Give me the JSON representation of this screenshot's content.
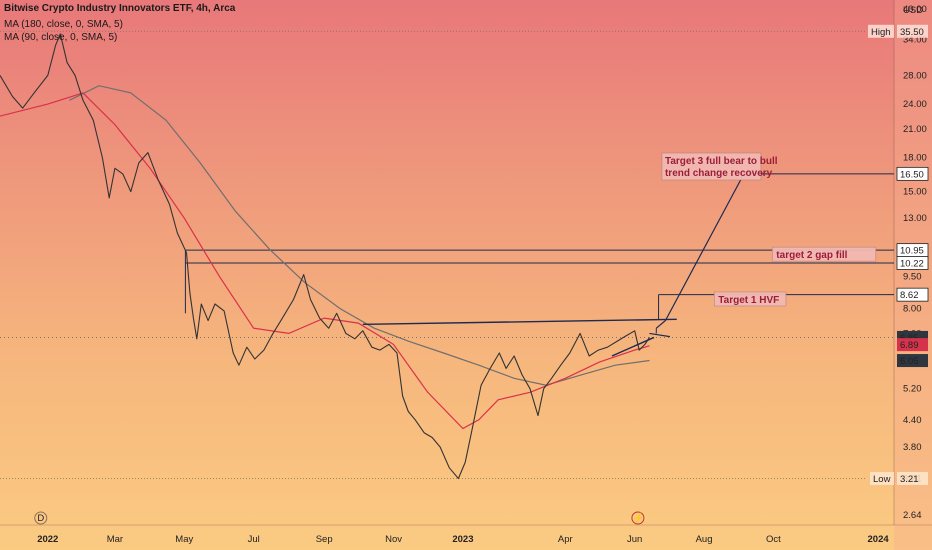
{
  "header": {
    "title": "Bitwise Crypto Industry Innovators ETF, 4h, Arca",
    "ma1": "MA (180, close, 0, SMA, 5)",
    "ma2": "MA (90, close, 0, SMA, 5)"
  },
  "colors": {
    "price": "#333333",
    "ma_red": "#d9314a",
    "ma_gray": "#6f6f6f",
    "level_line": "#1e2a50",
    "box_fill": "#f2b9b2",
    "label_red": "#d6334b",
    "label_gray": "#2f3640"
  },
  "chart_data": {
    "type": "line",
    "currency_label": "USD",
    "y_scale": "log",
    "ylim": [
      2.5,
      42
    ],
    "x_range": [
      "2021-11-20",
      "2024-01-15"
    ],
    "x_ticks": [
      {
        "date": "2022-01-01",
        "label": "2022",
        "bold": true
      },
      {
        "date": "2022-03-01",
        "label": "Mar",
        "bold": false
      },
      {
        "date": "2022-05-01",
        "label": "May",
        "bold": false
      },
      {
        "date": "2022-07-01",
        "label": "Jul",
        "bold": false
      },
      {
        "date": "2022-09-01",
        "label": "Sep",
        "bold": false
      },
      {
        "date": "2022-11-01",
        "label": "Nov",
        "bold": false
      },
      {
        "date": "2023-01-01",
        "label": "2023",
        "bold": true
      },
      {
        "date": "2023-04-01",
        "label": "Apr",
        "bold": false
      },
      {
        "date": "2023-06-01",
        "label": "Jun",
        "bold": false
      },
      {
        "date": "2023-08-01",
        "label": "Aug",
        "bold": false
      },
      {
        "date": "2023-10-01",
        "label": "Oct",
        "bold": false
      },
      {
        "date": "2024-01-01",
        "label": "2024",
        "bold": true
      }
    ],
    "y_ticks": [
      "2.64",
      "3.21",
      "3.80",
      "4.40",
      "5.20",
      "6.05",
      "6.89",
      "7.00",
      "8.00",
      "9.50",
      "10.95",
      "13.00",
      "15.00",
      "16.50",
      "18.00",
      "21.00",
      "24.00",
      "28.00",
      "34.00",
      "40.00"
    ],
    "y_tick_values": [
      2.64,
      3.21,
      3.8,
      4.4,
      5.2,
      6.05,
      6.89,
      7.0,
      8.0,
      9.5,
      10.95,
      13.0,
      15.0,
      16.5,
      18.0,
      21.0,
      24.0,
      28.0,
      34.0,
      40.0
    ],
    "price_series": [
      [
        "2021-11-20",
        28
      ],
      [
        "2021-12-01",
        25
      ],
      [
        "2021-12-10",
        23.5
      ],
      [
        "2021-12-20",
        25.5
      ],
      [
        "2022-01-01",
        28
      ],
      [
        "2022-01-08",
        33
      ],
      [
        "2022-01-12",
        35
      ],
      [
        "2022-01-18",
        30
      ],
      [
        "2022-01-25",
        28
      ],
      [
        "2022-02-01",
        24.5
      ],
      [
        "2022-02-10",
        22
      ],
      [
        "2022-02-18",
        18
      ],
      [
        "2022-02-24",
        14.5
      ],
      [
        "2022-03-01",
        17
      ],
      [
        "2022-03-08",
        16.5
      ],
      [
        "2022-03-15",
        15
      ],
      [
        "2022-03-22",
        17.5
      ],
      [
        "2022-03-30",
        18.5
      ],
      [
        "2022-04-08",
        16
      ],
      [
        "2022-04-18",
        14
      ],
      [
        "2022-04-25",
        12
      ],
      [
        "2022-05-03",
        10.8
      ],
      [
        "2022-05-06",
        8.7
      ],
      [
        "2022-05-09",
        7.6
      ],
      [
        "2022-05-12",
        6.8
      ],
      [
        "2022-05-16",
        8.2
      ],
      [
        "2022-05-22",
        7.5
      ],
      [
        "2022-05-28",
        8.2
      ],
      [
        "2022-06-05",
        7.9
      ],
      [
        "2022-06-13",
        6.3
      ],
      [
        "2022-06-18",
        5.9
      ],
      [
        "2022-06-25",
        6.5
      ],
      [
        "2022-07-02",
        6.1
      ],
      [
        "2022-07-10",
        6.4
      ],
      [
        "2022-07-18",
        7.0
      ],
      [
        "2022-07-25",
        7.5
      ],
      [
        "2022-08-05",
        8.4
      ],
      [
        "2022-08-14",
        9.6
      ],
      [
        "2022-08-20",
        8.4
      ],
      [
        "2022-08-28",
        7.6
      ],
      [
        "2022-09-05",
        7.2
      ],
      [
        "2022-09-12",
        7.8
      ],
      [
        "2022-09-20",
        7.0
      ],
      [
        "2022-09-28",
        6.8
      ],
      [
        "2022-10-05",
        7.1
      ],
      [
        "2022-10-13",
        6.5
      ],
      [
        "2022-10-20",
        6.4
      ],
      [
        "2022-10-28",
        6.6
      ],
      [
        "2022-11-04",
        6.3
      ],
      [
        "2022-11-09",
        5.0
      ],
      [
        "2022-11-14",
        4.6
      ],
      [
        "2022-11-20",
        4.4
      ],
      [
        "2022-11-28",
        4.1
      ],
      [
        "2022-12-05",
        4.0
      ],
      [
        "2022-12-12",
        3.8
      ],
      [
        "2022-12-20",
        3.4
      ],
      [
        "2022-12-28",
        3.21
      ],
      [
        "2023-01-03",
        3.5
      ],
      [
        "2023-01-10",
        4.3
      ],
      [
        "2023-01-17",
        5.3
      ],
      [
        "2023-01-25",
        5.8
      ],
      [
        "2023-02-02",
        6.3
      ],
      [
        "2023-02-08",
        5.8
      ],
      [
        "2023-02-15",
        6.2
      ],
      [
        "2023-02-22",
        5.6
      ],
      [
        "2023-03-01",
        5.2
      ],
      [
        "2023-03-08",
        4.5
      ],
      [
        "2023-03-13",
        5.2
      ],
      [
        "2023-03-20",
        5.5
      ],
      [
        "2023-03-28",
        5.9
      ],
      [
        "2023-04-05",
        6.3
      ],
      [
        "2023-04-14",
        7.0
      ],
      [
        "2023-04-22",
        6.2
      ],
      [
        "2023-04-30",
        6.4
      ],
      [
        "2023-05-08",
        6.5
      ],
      [
        "2023-05-16",
        6.7
      ],
      [
        "2023-05-24",
        6.9
      ],
      [
        "2023-06-01",
        7.1
      ],
      [
        "2023-06-05",
        6.4
      ],
      [
        "2023-06-10",
        6.6
      ],
      [
        "2023-06-14",
        6.85
      ]
    ],
    "ma_red_series": [
      [
        "2021-11-20",
        22.5
      ],
      [
        "2022-01-01",
        24
      ],
      [
        "2022-02-01",
        25.5
      ],
      [
        "2022-03-01",
        21.5
      ],
      [
        "2022-04-01",
        17
      ],
      [
        "2022-05-01",
        13
      ],
      [
        "2022-06-01",
        9.5
      ],
      [
        "2022-07-01",
        7.2
      ],
      [
        "2022-08-01",
        7.0
      ],
      [
        "2022-09-01",
        7.6
      ],
      [
        "2022-10-01",
        7.4
      ],
      [
        "2022-11-01",
        6.6
      ],
      [
        "2022-12-01",
        5.1
      ],
      [
        "2023-01-01",
        4.2
      ],
      [
        "2023-01-15",
        4.4
      ],
      [
        "2023-02-01",
        4.9
      ],
      [
        "2023-03-01",
        5.1
      ],
      [
        "2023-04-01",
        5.5
      ],
      [
        "2023-05-01",
        6.0
      ],
      [
        "2023-06-01",
        6.4
      ],
      [
        "2023-06-14",
        6.55
      ]
    ],
    "ma_gray_series": [
      [
        "2022-01-20",
        24.5
      ],
      [
        "2022-02-15",
        26.5
      ],
      [
        "2022-03-15",
        25.5
      ],
      [
        "2022-04-15",
        22
      ],
      [
        "2022-05-15",
        17.5
      ],
      [
        "2022-06-15",
        13.5
      ],
      [
        "2022-07-15",
        11
      ],
      [
        "2022-08-15",
        9.2
      ],
      [
        "2022-09-15",
        8.0
      ],
      [
        "2022-10-15",
        7.2
      ],
      [
        "2022-11-15",
        6.7
      ],
      [
        "2022-12-15",
        6.3
      ],
      [
        "2023-01-15",
        5.9
      ],
      [
        "2023-02-15",
        5.5
      ],
      [
        "2023-03-15",
        5.3
      ],
      [
        "2023-04-15",
        5.6
      ],
      [
        "2023-05-15",
        5.9
      ],
      [
        "2023-06-14",
        6.05
      ]
    ],
    "resistance_line": {
      "from": [
        "2022-10-05",
        7.35
      ],
      "to": [
        "2023-07-08",
        7.55
      ]
    },
    "support_line": {
      "from": [
        "2023-05-12",
        6.2
      ],
      "to": [
        "2023-06-18",
        6.85
      ]
    },
    "bracket_line": {
      "from": [
        "2023-06-14",
        7.0
      ],
      "to": [
        "2023-07-02",
        6.88
      ]
    },
    "projection_path": [
      [
        "2023-06-20",
        7.2
      ],
      [
        "2023-06-28",
        7.5
      ],
      [
        "2023-09-05",
        16.5
      ]
    ],
    "target_lines": [
      {
        "start": "2022-05-02",
        "value": 10.95,
        "price_label": "10.95",
        "text": "target 2 gap fill",
        "label_start": "2023-09-30",
        "label_end": "2023-12-30"
      },
      {
        "start": "2022-05-02",
        "value": 10.22,
        "price_label": "10.22",
        "text": "",
        "label_start": "",
        "label_end": ""
      },
      {
        "start": "2023-06-22",
        "value": 8.62,
        "price_label": "8.62",
        "text": "Target 1 HVF",
        "label_start": "2023-08-10",
        "label_end": "2023-10-12"
      },
      {
        "start": "2023-09-05",
        "value": 16.5,
        "price_label": "16.50",
        "text": "Target 3 full bear to bull trend change recovery",
        "label_start": "2023-06-25",
        "label_end": "2023-09-20"
      }
    ],
    "price_tags": [
      {
        "label": "16.50",
        "value": 16.5,
        "kind": "level"
      },
      {
        "label": "10.95",
        "value": 10.95,
        "kind": "level"
      },
      {
        "label": "10.22",
        "value": 10.22,
        "kind": "level"
      },
      {
        "label": "8.62",
        "value": 8.62,
        "kind": "level"
      },
      {
        "label": "6.85",
        "value": 6.85,
        "kind": "gray"
      },
      {
        "label": "6.89",
        "value": 6.59,
        "kind": "red"
      },
      {
        "label": "6.05",
        "value": 6.05,
        "kind": "gray"
      }
    ],
    "high": {
      "label": "High",
      "value_text": "35.50",
      "value": 35.5
    },
    "low": {
      "label": "Low",
      "value_text": "3.21",
      "value": 3.21
    },
    "event_markers": [
      {
        "date": "2022-01-01",
        "symbol": "D"
      },
      {
        "date": "2023-06-10",
        "symbol": "⚡"
      }
    ]
  }
}
